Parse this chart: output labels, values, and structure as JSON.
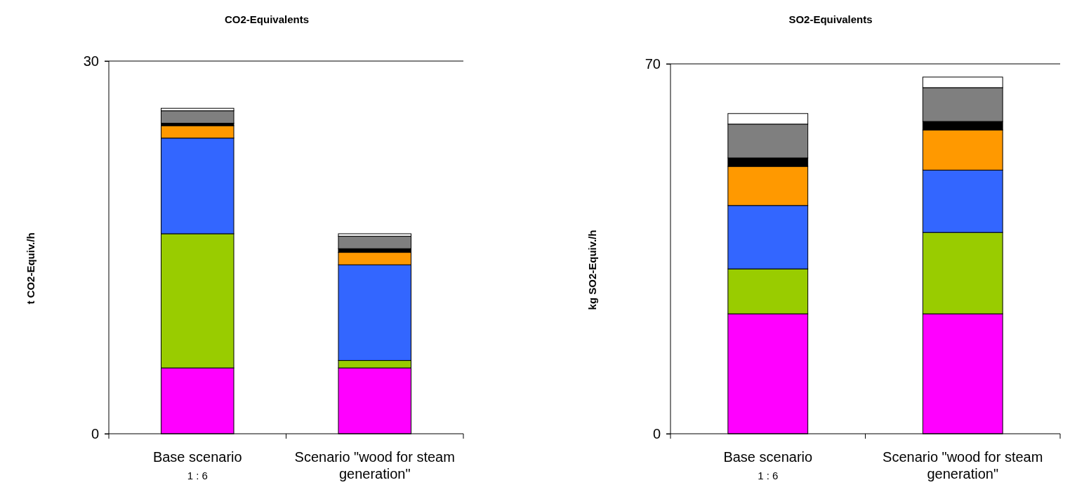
{
  "chart_data": [
    {
      "type": "bar",
      "title": "CO2-Equivalents",
      "ylabel": "t CO2-Equiv./h",
      "categories": [
        "Base scenario",
        "Scenario \"wood for steam generation\""
      ],
      "stacked": true,
      "ylim": [
        0,
        30
      ],
      "yticks": [
        0,
        30
      ],
      "annotations": [
        "1 : 6"
      ],
      "series": [
        {
          "color": "#ff00ff",
          "values": [
            5.3,
            5.3
          ]
        },
        {
          "color": "#99cc00",
          "values": [
            10.8,
            0.6
          ]
        },
        {
          "color": "#3366ff",
          "values": [
            7.7,
            7.7
          ]
        },
        {
          "color": "#ff9900",
          "values": [
            1.0,
            1.0
          ]
        },
        {
          "color": "#000000",
          "values": [
            0.2,
            0.3
          ]
        },
        {
          "color": "#7f7f7f",
          "values": [
            1.0,
            1.0
          ]
        },
        {
          "color": "#ffffff",
          "values": [
            0.2,
            0.2
          ]
        }
      ]
    },
    {
      "type": "bar",
      "title": "SO2-Equivalents",
      "ylabel": "kg SO2-Equiv./h",
      "categories": [
        "Base scenario",
        "Scenario \"wood for steam generation\""
      ],
      "stacked": true,
      "ylim": [
        0,
        70
      ],
      "yticks": [
        0,
        70
      ],
      "annotations": [
        "1 : 6"
      ],
      "series": [
        {
          "color": "#ff00ff",
          "values": [
            22.7,
            22.7
          ]
        },
        {
          "color": "#99cc00",
          "values": [
            8.5,
            15.4
          ]
        },
        {
          "color": "#3366ff",
          "values": [
            12.0,
            11.8
          ]
        },
        {
          "color": "#ff9900",
          "values": [
            7.4,
            7.6
          ]
        },
        {
          "color": "#000000",
          "values": [
            1.6,
            1.6
          ]
        },
        {
          "color": "#7f7f7f",
          "values": [
            6.4,
            6.4
          ]
        },
        {
          "color": "#ffffff",
          "values": [
            2.0,
            2.0
          ]
        }
      ]
    }
  ]
}
